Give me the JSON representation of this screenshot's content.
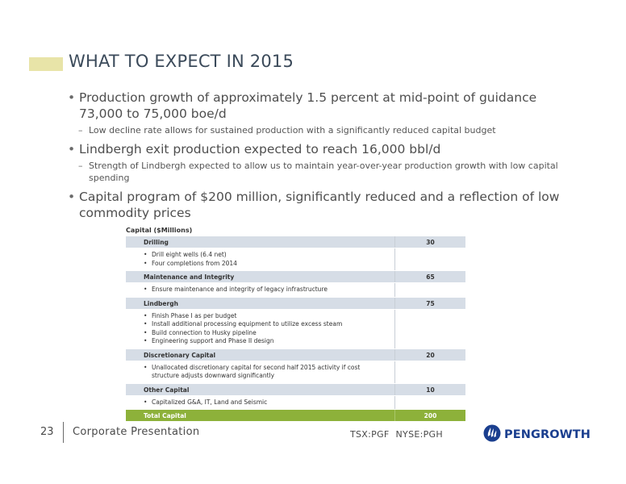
{
  "slide": {
    "title": "WHAT TO EXPECT IN 2015",
    "bullets": [
      {
        "text": "Production growth of approximately 1.5 percent at mid-point of guidance 73,000 to 75,000 boe/d",
        "sub": "Low decline rate allows for sustained production with a significantly reduced capital budget"
      },
      {
        "text": "Lindbergh exit production expected to reach 16,000 bbl/d",
        "sub": "Strength of Lindbergh expected to allow us to maintain year-over-year production growth with low capital spending"
      },
      {
        "text": "Capital program of $200 million, significantly reduced and a reflection of low commodity prices"
      }
    ]
  },
  "capital_table": {
    "title": "Capital ($Millions)",
    "rows": [
      {
        "category": "Drilling",
        "value": "30",
        "items": [
          "Drill eight wells (6.4 net)",
          "Four completions from 2014"
        ]
      },
      {
        "category": "Maintenance and Integrity",
        "value": "65",
        "items": [
          "Ensure maintenance and integrity of legacy infrastructure"
        ]
      },
      {
        "category": "Lindbergh",
        "value": "75",
        "items": [
          "Finish Phase I as per budget",
          "Install additional processing equipment to utilize excess steam",
          "Build connection to Husky pipeline",
          "Engineering support and Phase II design"
        ]
      },
      {
        "category": "Discretionary Capital",
        "value": "20",
        "items": [
          "Unallocated discretionary capital for second half 2015 activity if cost structure adjusts downward significantly"
        ]
      },
      {
        "category": "Other Capital",
        "value": "10",
        "items": [
          "Capitalized G&A, IT, Land and Seismic"
        ]
      }
    ],
    "total_label": "Total Capital",
    "total_value": "200"
  },
  "footer": {
    "page_number": "23",
    "presentation": "Corporate Presentation",
    "ticker_tsx": "TSX:PGF",
    "ticker_nyse": "NYSE:PGH",
    "logo_text": "PENGROWTH"
  },
  "colors": {
    "title": "#3b4a5a",
    "accent_bar": "#e8e4a8",
    "table_header": "#d6dde6",
    "total_row": "#8db13a",
    "logo": "#1b3f8f"
  }
}
